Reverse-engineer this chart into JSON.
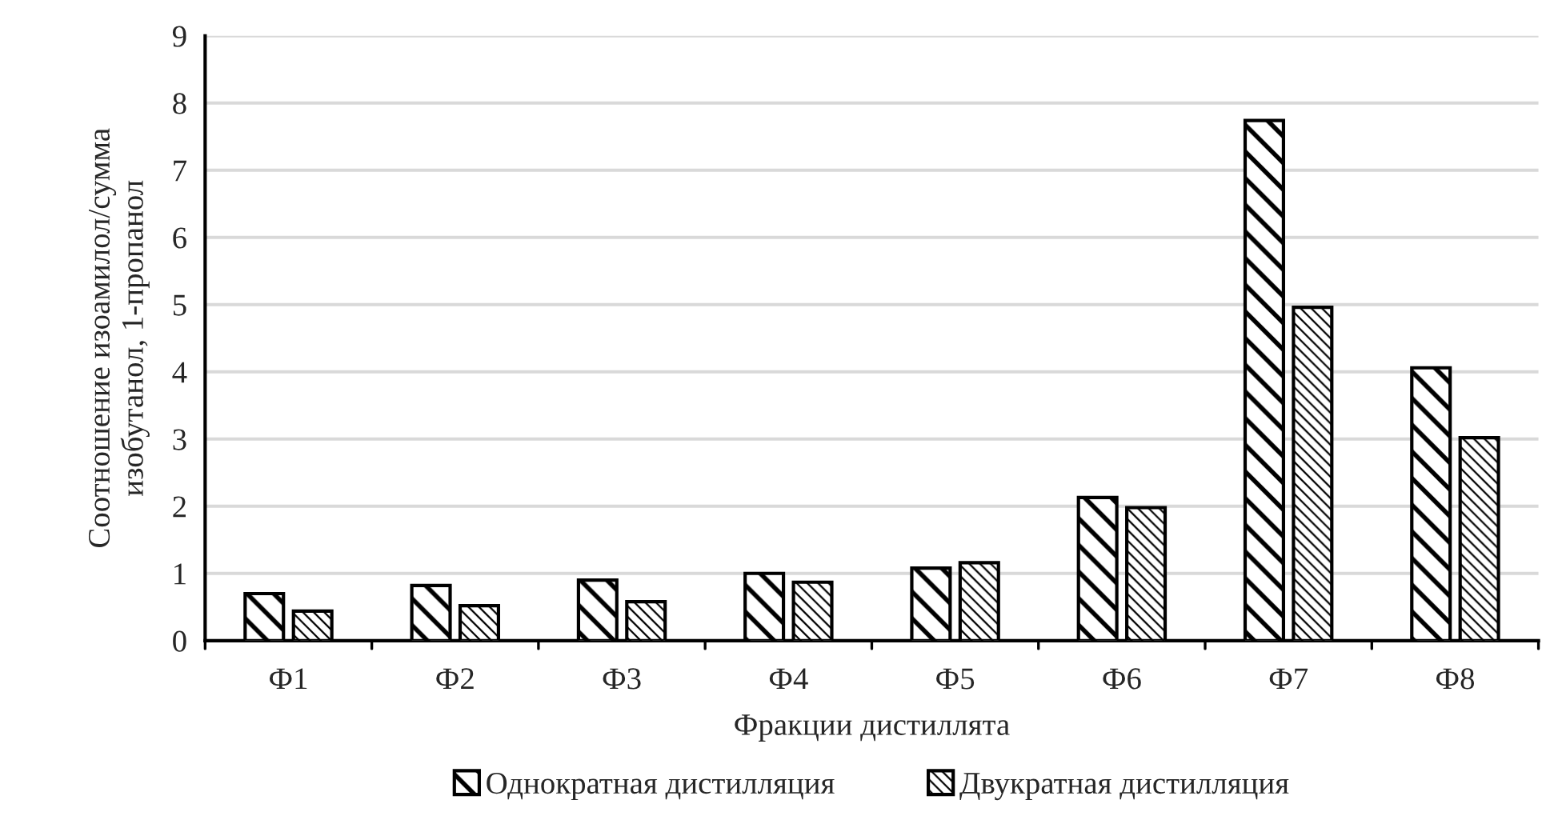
{
  "chart_data": {
    "type": "bar",
    "xlabel": "Фракции дистиллята",
    "ylabel": "Соотношение изоамилол/сумма\nизобутанол, 1-пропанол",
    "categories": [
      "Ф1",
      "Ф2",
      "Ф3",
      "Ф4",
      "Ф5",
      "Ф6",
      "Ф7",
      "Ф8"
    ],
    "series": [
      {
        "name": "Однократная дистилляция",
        "color": "#000000",
        "values": [
          0.7,
          0.82,
          0.9,
          1.0,
          1.08,
          2.13,
          7.74,
          4.06
        ]
      },
      {
        "name": "Двукратная дистилляция",
        "color": "#000000",
        "values": [
          0.44,
          0.52,
          0.58,
          0.87,
          1.16,
          1.98,
          4.96,
          3.02
        ]
      }
    ],
    "ylim": [
      0,
      9
    ],
    "yticks": [
      0,
      1,
      2,
      3,
      4,
      5,
      6,
      7,
      8,
      9
    ],
    "grid": "y",
    "legend": "bottom"
  }
}
